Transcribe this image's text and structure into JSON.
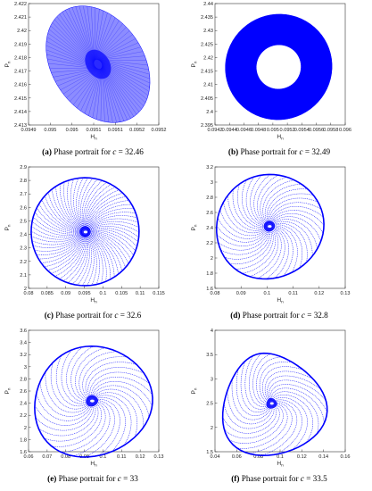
{
  "chart_data": [
    {
      "id": "a",
      "type": "scatter",
      "caption": {
        "label": "(a)",
        "text": "Phase portrait for",
        "var": "c",
        "eq": "= 32.46"
      },
      "xlabel": "H",
      "xlabel_sub": "n",
      "ylabel": "P",
      "ylabel_sub": "n",
      "xlim": [
        0.0949,
        0.0952
      ],
      "ylim": [
        2.413,
        2.422
      ],
      "xticks": [
        "0.0949",
        "0.095",
        "0.095",
        "0.0951",
        "0.0951",
        "0.0952",
        "0.0952"
      ],
      "yticks": [
        "2.413",
        "2.414",
        "2.415",
        "2.416",
        "2.417",
        "2.418",
        "2.419",
        "2.42",
        "2.421",
        "2.422"
      ],
      "orbit": {
        "style": "dense_ellipse",
        "center": [
          0.09506,
          2.4175
        ],
        "rx": 0.000105,
        "ry": 0.0047,
        "tilt": -0.6,
        "core": 0.25
      },
      "color": "#0000ff"
    },
    {
      "id": "b",
      "type": "scatter",
      "caption": {
        "label": "(b)",
        "text": "Phase portrait for",
        "var": "c",
        "eq": "= 32.49"
      },
      "xlabel": "H",
      "xlabel_sub": "n",
      "ylabel": "P",
      "ylabel_sub": "n",
      "xlim": [
        0.0942,
        0.096
      ],
      "ylim": [
        2.395,
        2.44
      ],
      "xticks": [
        "0.0942",
        "0.0944",
        "0.0946",
        "0.0948",
        "0.095",
        "0.0952",
        "0.0954",
        "0.0956",
        "0.0958",
        "0.096"
      ],
      "yticks": [
        "2.395",
        "2.4",
        "2.405",
        "2.41",
        "2.415",
        "2.42",
        "2.425",
        "2.43",
        "2.435",
        "2.44"
      ],
      "orbit": {
        "style": "annulus",
        "center": [
          0.09508,
          2.4165
        ],
        "rx": 0.00074,
        "ry": 0.0195,
        "tilt": -0.45,
        "hole": 0.42
      },
      "color": "#0000ff"
    },
    {
      "id": "c",
      "type": "scatter",
      "caption": {
        "label": "(c)",
        "text": "Phase portrait for",
        "var": "c",
        "eq": "= 32.6"
      },
      "xlabel": "H",
      "xlabel_sub": "n",
      "ylabel": "P",
      "ylabel_sub": "n",
      "xlim": [
        0.08,
        0.115
      ],
      "ylim": [
        2.0,
        2.9
      ],
      "xticks": [
        "0.08",
        "0.085",
        "0.09",
        "0.095",
        "0.1",
        "0.105",
        "0.11",
        "0.115"
      ],
      "yticks": [
        "2",
        "2.1",
        "2.2",
        "2.3",
        "2.4",
        "2.5",
        "2.6",
        "2.7",
        "2.8",
        "2.9"
      ],
      "orbit": {
        "style": "spiral",
        "center": [
          0.0952,
          2.42
        ],
        "rx": 0.0145,
        "ry": 0.4,
        "tilt": -0.5,
        "arms": 70,
        "twist": 0.6,
        "egg": 0
      },
      "color": "#0000ff"
    },
    {
      "id": "d",
      "type": "scatter",
      "caption": {
        "label": "(d)",
        "text": "Phase portrait for",
        "var": "c",
        "eq": "= 32.8"
      },
      "xlabel": "H",
      "xlabel_sub": "n",
      "ylabel": "P",
      "ylabel_sub": "n",
      "xlim": [
        0.07,
        0.13
      ],
      "ylim": [
        1.6,
        3.2
      ],
      "xticks": [
        "0.08",
        "0.09",
        "0.1",
        "0.11",
        "0.12",
        "0.13"
      ],
      "yticks": [
        "1.6",
        "1.8",
        "2",
        "2.2",
        "2.4",
        "2.6",
        "2.8",
        "3",
        "3.2"
      ],
      "orbit": {
        "style": "spiral",
        "center": [
          0.095,
          2.42
        ],
        "rx": 0.025,
        "ry": 0.68,
        "tilt": -0.5,
        "arms": 40,
        "twist": 1.3,
        "egg": 0.05
      },
      "color": "#0000ff"
    },
    {
      "id": "e",
      "type": "scatter",
      "caption": {
        "label": "(e)",
        "text": "Phase portrait for",
        "var": "c",
        "eq": "= 33"
      },
      "xlabel": "H",
      "xlabel_sub": "n",
      "ylabel": "P",
      "ylabel_sub": "n",
      "xlim": [
        0.06,
        0.13
      ],
      "ylim": [
        1.6,
        3.6
      ],
      "xticks": [
        "0.06",
        "0.07",
        "0.08",
        "0.09",
        "0.1",
        "0.11",
        "0.12",
        "0.13"
      ],
      "yticks": [
        "1.6",
        "1.8",
        "2",
        "2.2",
        "2.4",
        "2.6",
        "2.8",
        "3",
        "3.2",
        "3.4",
        "3.6"
      ],
      "orbit": {
        "style": "spiral",
        "center": [
          0.094,
          2.44
        ],
        "rx": 0.032,
        "ry": 0.9,
        "tilt": -0.4,
        "arms": 30,
        "twist": 1.8,
        "egg": 0.1
      },
      "color": "#0000ff"
    },
    {
      "id": "f",
      "type": "scatter",
      "caption": {
        "label": "(f)",
        "text": "Phase portrait for",
        "var": "c",
        "eq": "= 33.5"
      },
      "xlabel": "H",
      "xlabel_sub": "n",
      "ylabel": "P",
      "ylabel_sub": "n",
      "xlim": [
        0.04,
        0.16
      ],
      "ylim": [
        1.5,
        4.0
      ],
      "xticks": [
        "0.04",
        "0.06",
        "0.08",
        "0.1",
        "0.12",
        "0.14",
        "0.16"
      ],
      "yticks": [
        "1.5",
        "2",
        "2.5",
        "3",
        "3.5",
        "4"
      ],
      "orbit": {
        "style": "spiral",
        "center": [
          0.092,
          2.5
        ],
        "rx": 0.047,
        "ry": 1.05,
        "tilt": -0.3,
        "arms": 26,
        "twist": 2.2,
        "egg": 0.28
      },
      "color": "#0000ff"
    }
  ]
}
